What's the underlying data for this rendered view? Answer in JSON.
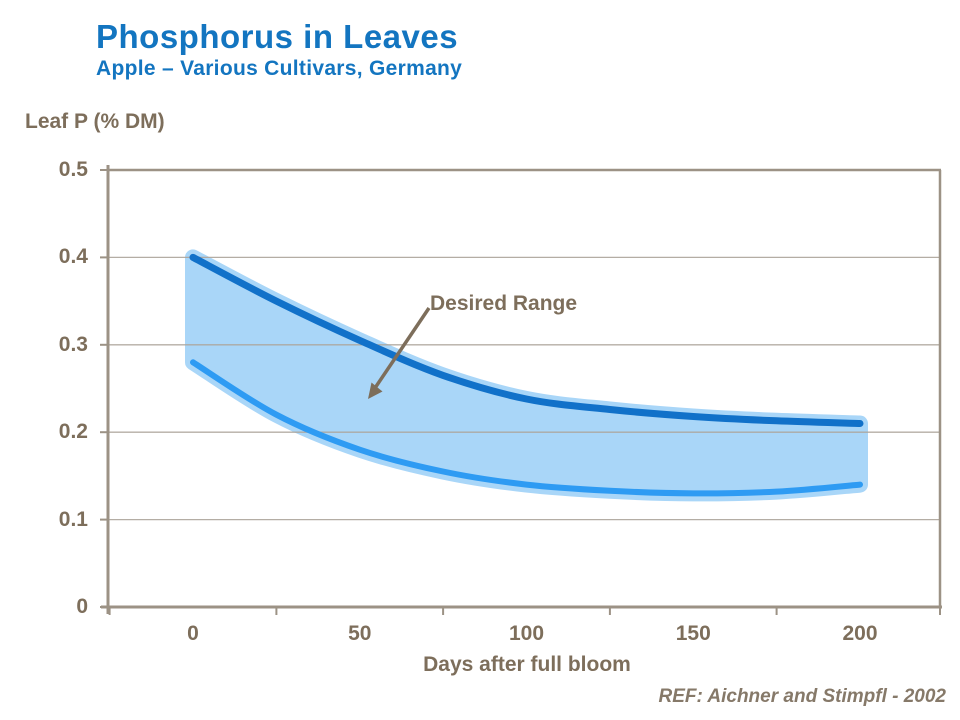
{
  "header": {
    "title": "Phosphorus in Leaves",
    "subtitle": "Apple – Various Cultivars, Germany"
  },
  "footer": {
    "reference": "REF: Aichner and Stimpfl - 2002"
  },
  "colors": {
    "title_blue": "#1375C0",
    "text_brown": "#7D6E5B",
    "axis": "#9C9285",
    "gridline": "#ACA49A",
    "upper_line": "#1171C9",
    "lower_line": "#2E9BF3",
    "band_fill": "#A9D6F8",
    "reference_text": "#867969"
  },
  "chart_data": {
    "type": "area",
    "title": "Phosphorus in Leaves",
    "subtitle": "Apple – Various Cultivars, Germany",
    "xlabel": "Days after full bloom",
    "ylabel": "Leaf P (% DM)",
    "xlim": [
      0,
      200
    ],
    "ylim": [
      0,
      0.5
    ],
    "grid": "horizontal",
    "legend": "none",
    "annotation": {
      "label": "Desired Range",
      "points_to": "shaded band between curves"
    },
    "x": [
      0,
      25,
      50,
      75,
      100,
      125,
      150,
      175,
      200
    ],
    "series": [
      {
        "name": "upper_bound",
        "values": [
          0.4,
          0.35,
          0.305,
          0.265,
          0.238,
          0.226,
          0.218,
          0.213,
          0.21
        ]
      },
      {
        "name": "lower_bound",
        "values": [
          0.28,
          0.22,
          0.18,
          0.155,
          0.14,
          0.133,
          0.13,
          0.132,
          0.14
        ]
      }
    ],
    "x_ticks": [
      {
        "value": 0,
        "label": "0"
      },
      {
        "value": 50,
        "label": "50"
      },
      {
        "value": 100,
        "label": "100"
      },
      {
        "value": 150,
        "label": "150"
      },
      {
        "value": 200,
        "label": "200"
      }
    ],
    "y_ticks": [
      {
        "value": 0,
        "label": "0"
      },
      {
        "value": 0.1,
        "label": "0.1"
      },
      {
        "value": 0.2,
        "label": "0.2"
      },
      {
        "value": 0.3,
        "label": "0.3"
      },
      {
        "value": 0.4,
        "label": "0.4"
      },
      {
        "value": 0.5,
        "label": "0.5"
      }
    ]
  }
}
